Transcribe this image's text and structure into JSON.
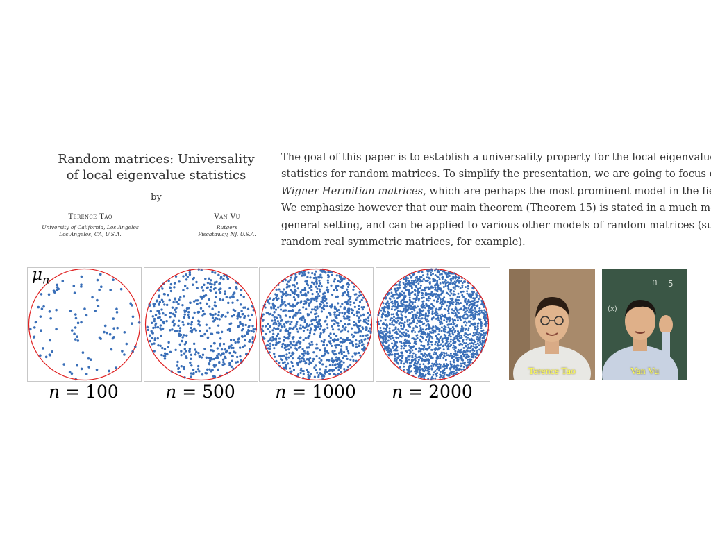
{
  "paper": {
    "title_line1": "Random matrices: Universality",
    "title_line2": "of local eigenvalue statistics",
    "by": "by",
    "authors": [
      {
        "name": "Terence Tao",
        "affil_line1": "University of California, Los Angeles",
        "affil_line2": "Los Angeles, CA, U.S.A."
      },
      {
        "name": "Van Vu",
        "affil_line1": "Rutgers",
        "affil_line2": "Piscataway, NJ, U.S.A."
      }
    ]
  },
  "abstract": {
    "line1": "The goal of this paper is to establish a universality property for the local eigenvalue",
    "line2": "statistics for random matrices.  To simplify the presentation, we are going to focus on",
    "line3_em": "Wigner Hermitian matrices",
    "line3_rest": ", which are perhaps the most prominent model in the field.",
    "line4": "We emphasize however that our main theorem (Theorem 15) is stated in a much more",
    "line5": "general setting, and can be applied to various other models of random matrices (such as",
    "line6": "random real symmetric matrices, for example)."
  },
  "figure": {
    "mu_symbol": "μ",
    "mu_subscript": "n",
    "n_var": "n",
    "equals": " = ",
    "panels": [
      {
        "n": "100",
        "points": 100
      },
      {
        "n": "500",
        "points": 500
      },
      {
        "n": "1000",
        "points": 1000
      },
      {
        "n": "2000",
        "points": 2000
      }
    ],
    "dot_color": "#3a6fb8",
    "circle_color": "#e02020"
  },
  "photos": {
    "tao_caption": "Terence Tao",
    "vu_caption": "Van Vu"
  }
}
